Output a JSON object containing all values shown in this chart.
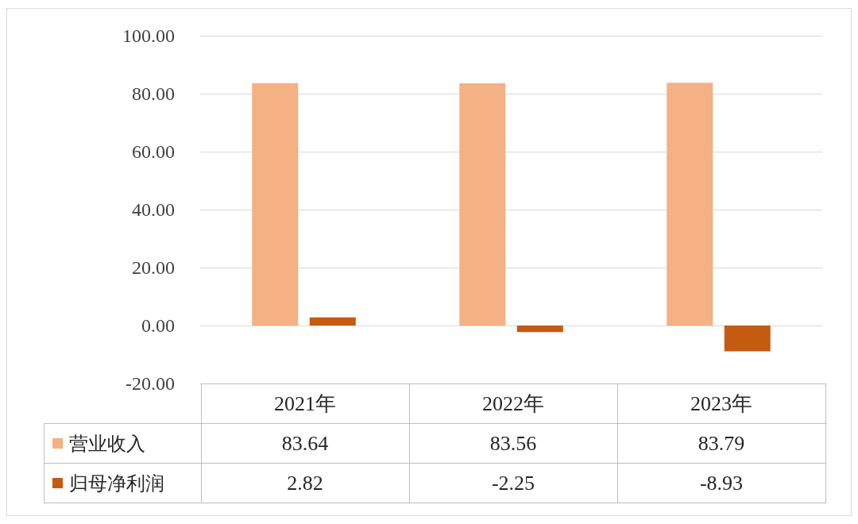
{
  "chart_data": {
    "type": "bar",
    "categories": [
      "2021年",
      "2022年",
      "2023年"
    ],
    "series": [
      {
        "name": "营业收入",
        "color": "#f4b183",
        "values": [
          83.64,
          83.56,
          83.79
        ]
      },
      {
        "name": "归母净利润",
        "color": "#c55a11",
        "values": [
          2.82,
          -2.25,
          -8.93
        ]
      }
    ],
    "ylim": [
      -20,
      100
    ],
    "yticks": [
      {
        "value": -20,
        "label": "-20.00"
      },
      {
        "value": 0,
        "label": "0.00"
      },
      {
        "value": 20,
        "label": "20.00"
      },
      {
        "value": 40,
        "label": "40.00"
      },
      {
        "value": 60,
        "label": "60.00"
      },
      {
        "value": 80,
        "label": "80.00"
      },
      {
        "value": 100,
        "label": "100.00"
      }
    ],
    "grid": "y",
    "data_labels": true,
    "legend": "bottom left"
  }
}
